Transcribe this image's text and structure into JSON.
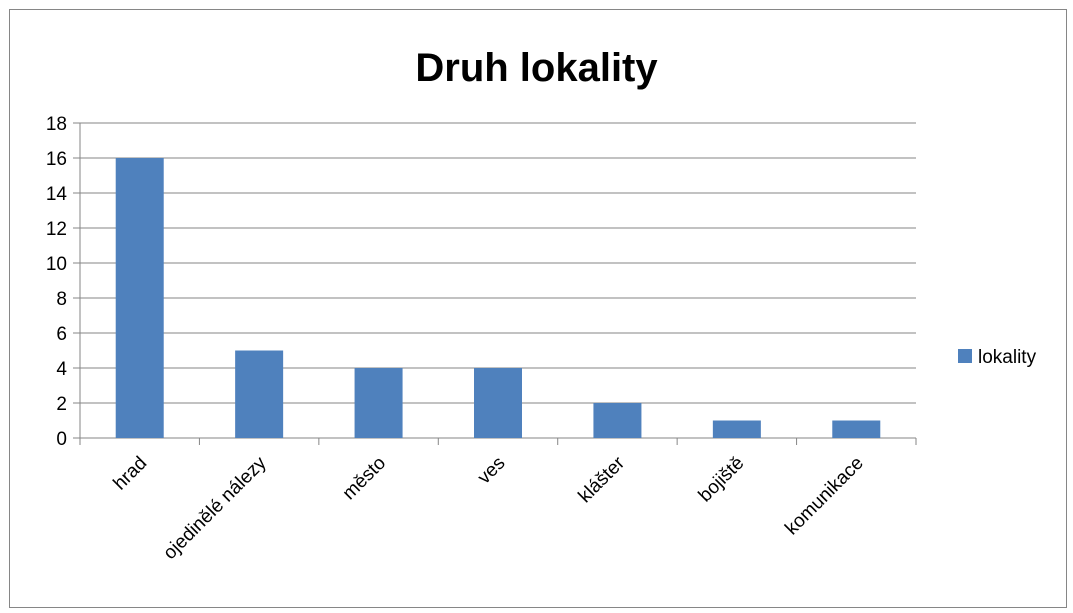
{
  "chart_data": {
    "type": "bar",
    "title": "Druh lokality",
    "categories": [
      "hrad",
      "ojedinělé nálezy",
      "město",
      "ves",
      "klášter",
      "bojiště",
      "komunikace"
    ],
    "series": [
      {
        "name": "lokality",
        "values": [
          16,
          5,
          4,
          4,
          2,
          1,
          1
        ],
        "color": "#4F81BD"
      }
    ],
    "xlabel": "",
    "ylabel": "",
    "ylim": [
      0,
      18
    ],
    "yticks": [
      0,
      2,
      4,
      6,
      8,
      10,
      12,
      14,
      16,
      18
    ],
    "grid": true,
    "legend_position": "right"
  }
}
